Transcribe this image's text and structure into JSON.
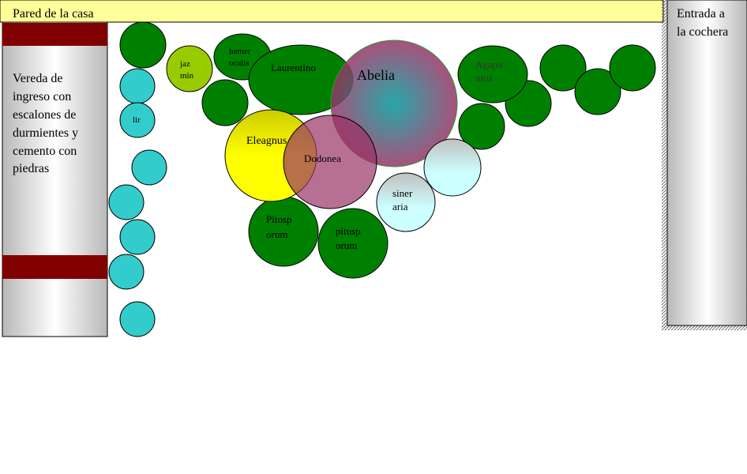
{
  "header": {
    "title": "Pared de la casa"
  },
  "walkway": {
    "lines": [
      "Vereda de",
      "ingreso con",
      "escalones de",
      "durmientes y",
      "cemento con",
      "piedras"
    ]
  },
  "entrance": {
    "lines": [
      "Entrada a",
      "la cochera"
    ]
  },
  "plants": [
    {
      "label": [
        "jaz",
        "min"
      ]
    },
    {
      "label": [
        "hemer",
        "ocalis"
      ]
    },
    {
      "label": [
        "Laurentino"
      ]
    },
    {
      "label": [
        "Abelia"
      ]
    },
    {
      "label": [
        "Agapa",
        "ntos"
      ]
    },
    {
      "label": [
        "lir"
      ]
    },
    {
      "label": [
        "Eleagnus"
      ]
    },
    {
      "label": [
        "Dodonea"
      ]
    },
    {
      "label": [
        "siner",
        "aria"
      ]
    },
    {
      "label": [
        "Pitosp",
        "orum"
      ]
    },
    {
      "label": [
        "pitusp",
        "orum"
      ]
    }
  ]
}
